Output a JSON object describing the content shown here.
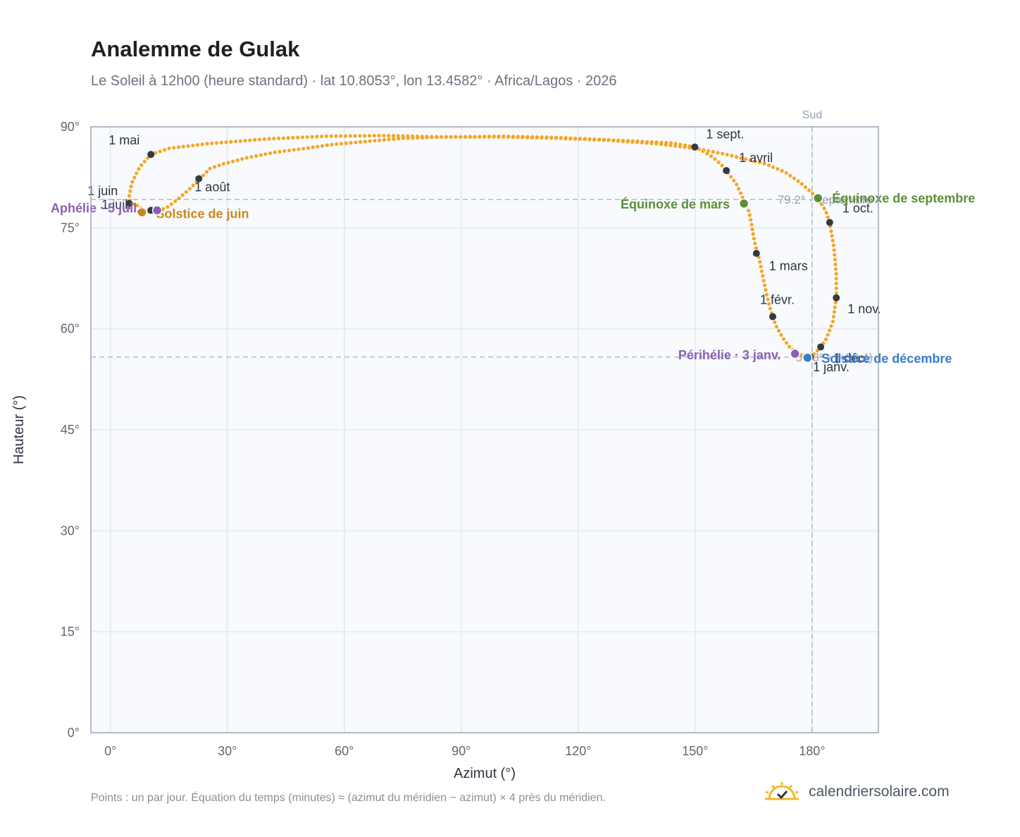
{
  "header": {
    "title": "Analemme de Gulak",
    "subtitle": "Le Soleil à 12h00 (heure standard) · lat 10.8053°, lon 13.4582° · Africa/Lagos · 2026"
  },
  "footer": {
    "note": "Points : un par jour. Équation du temps (minutes) ≈ (azimut du méridien − azimut) × 4 près du méridien.",
    "brand": "calendriersolaire.com",
    "brand_icon": "sun-check-icon"
  },
  "colors": {
    "curve": "#f5a623",
    "month_marker": "#333a44",
    "equinox": "#5a8f35",
    "solstice_june": "#c8891a",
    "solstice_december": "#3a7bc8",
    "aphelion_perihelion": "#8b5fb5",
    "plot_background": "#f8fafd",
    "grid": "#e3e8ef",
    "reference_line": "#aebccb"
  },
  "chart_data": {
    "type": "scatter",
    "xlabel": "Azimut (°)",
    "ylabel": "Hauteur (°)",
    "xlim": [
      -5,
      197
    ],
    "ylim": [
      0,
      90
    ],
    "xticks": [
      "0°",
      "30°",
      "60°",
      "90°",
      "120°",
      "150°",
      "180°"
    ],
    "xtick_values": [
      0,
      30,
      60,
      90,
      120,
      150,
      180
    ],
    "yticks": [
      "0°",
      "15°",
      "30°",
      "45°",
      "60°",
      "75°",
      "90°"
    ],
    "ytick_values": [
      0,
      15,
      30,
      45,
      60,
      75,
      90
    ],
    "grid": true,
    "reference_lines": {
      "meridian": {
        "azimuth": 180,
        "label": "Sud"
      },
      "max_altitude": {
        "altitude": 79.2,
        "label": "79.2° · septembre"
      },
      "min_altitude": {
        "altitude": 55.8,
        "label": "55.8° · (+30.4)"
      }
    },
    "curve_points": [
      [
        179.5,
        55.8
      ],
      [
        176.5,
        56.2
      ],
      [
        174.2,
        57.3
      ],
      [
        172.3,
        58.8
      ],
      [
        170.7,
        60.5
      ],
      [
        169.9,
        61.8
      ],
      [
        169.0,
        63.5
      ],
      [
        168.1,
        65.7
      ],
      [
        167.2,
        68.2
      ],
      [
        166.4,
        70.5
      ],
      [
        165.7,
        71.8
      ],
      [
        165.0,
        73.6
      ],
      [
        164.4,
        75.7
      ],
      [
        163.8,
        77.4
      ],
      [
        162.8,
        78.6
      ],
      [
        161.8,
        80.0
      ],
      [
        160.5,
        81.6
      ],
      [
        159.0,
        82.7
      ],
      [
        158.0,
        83.5
      ],
      [
        156.5,
        84.5
      ],
      [
        154.5,
        85.5
      ],
      [
        152.3,
        86.3
      ],
      [
        150.0,
        87.0
      ],
      [
        144.0,
        87.6
      ],
      [
        130.0,
        88.0
      ],
      [
        115.0,
        88.4
      ],
      [
        100.0,
        88.6
      ],
      [
        90.0,
        88.5
      ],
      [
        85.4,
        88.5
      ],
      [
        75.0,
        88.3
      ],
      [
        65.0,
        87.8
      ],
      [
        57.2,
        87.4
      ],
      [
        50.0,
        86.8
      ],
      [
        42.0,
        86.2
      ],
      [
        35.0,
        85.4
      ],
      [
        29.0,
        84.5
      ],
      [
        25.5,
        83.8
      ],
      [
        23.0,
        82.3
      ],
      [
        20.0,
        80.6
      ],
      [
        17.0,
        79.1
      ],
      [
        14.2,
        77.9
      ],
      [
        12.0,
        77.6
      ],
      [
        9.5,
        77.3
      ],
      [
        7.0,
        78.3
      ],
      [
        5.3,
        78.6
      ],
      [
        4.8,
        79.6
      ],
      [
        5.5,
        81.7
      ],
      [
        7.5,
        84.0
      ],
      [
        10.4,
        85.9
      ],
      [
        15.0,
        86.8
      ],
      [
        25.0,
        87.5
      ],
      [
        40.0,
        88.2
      ],
      [
        55.0,
        88.6
      ],
      [
        70.0,
        88.7
      ],
      [
        85.0,
        88.5
      ],
      [
        100.0,
        88.5
      ],
      [
        115.0,
        88.3
      ],
      [
        128.0,
        88.0
      ],
      [
        140.0,
        87.5
      ],
      [
        150.0,
        86.8
      ],
      [
        158.0,
        85.9
      ],
      [
        163.0,
        85.2
      ],
      [
        168.0,
        84.5
      ],
      [
        173.0,
        83.3
      ],
      [
        177.0,
        81.7
      ],
      [
        181.5,
        79.4
      ],
      [
        183.5,
        77.5
      ],
      [
        184.5,
        75.8
      ],
      [
        185.6,
        72.0
      ],
      [
        186.2,
        68.0
      ],
      [
        186.2,
        64.6
      ],
      [
        185.3,
        61.0
      ],
      [
        183.6,
        58.5
      ],
      [
        182.2,
        57.3
      ],
      [
        181.0,
        56.5
      ],
      [
        179.5,
        55.8
      ]
    ],
    "month_markers": [
      {
        "label": "1 janv.",
        "azimuth": 179.5,
        "altitude": 55.8
      },
      {
        "label": "1 févr.",
        "azimuth": 169.9,
        "altitude": 61.8
      },
      {
        "label": "1 mars",
        "azimuth": 165.7,
        "altitude": 71.2
      },
      {
        "label": "1 avril",
        "azimuth": 158.0,
        "altitude": 83.5
      },
      {
        "label": "1 mai",
        "azimuth": 10.4,
        "altitude": 85.9
      },
      {
        "label": "1 juin",
        "azimuth": 4.8,
        "altitude": 78.6
      },
      {
        "label": "1 juil.",
        "azimuth": 10.4,
        "altitude": 77.6
      },
      {
        "label": "1 août",
        "azimuth": 22.7,
        "altitude": 82.3
      },
      {
        "label": "1 sept.",
        "azimuth": 149.9,
        "altitude": 87.0
      },
      {
        "label": "1 oct.",
        "azimuth": 184.5,
        "altitude": 75.8
      },
      {
        "label": "1 nov.",
        "azimuth": 186.2,
        "altitude": 64.6
      },
      {
        "label": "1 déc.",
        "azimuth": 182.2,
        "altitude": 57.3
      }
    ],
    "events": [
      {
        "label": "Équinoxe de mars",
        "azimuth": 162.5,
        "altitude": 78.6,
        "kind": "equinox"
      },
      {
        "label": "Équinoxe de septembre",
        "azimuth": 181.5,
        "altitude": 79.4,
        "kind": "equinox"
      },
      {
        "label": "Solstice de juin",
        "azimuth": 8.1,
        "altitude": 77.3,
        "kind": "solstice_june"
      },
      {
        "label": "Solstice de décembre",
        "azimuth": 178.8,
        "altitude": 55.7,
        "kind": "solstice_december"
      },
      {
        "label": "Aphélie · 5 juil.",
        "azimuth": 12.0,
        "altitude": 77.6,
        "kind": "aphelion_perihelion"
      },
      {
        "label": "Périhélie · 3 janv.",
        "azimuth": 175.6,
        "altitude": 56.3,
        "kind": "aphelion_perihelion"
      }
    ]
  }
}
